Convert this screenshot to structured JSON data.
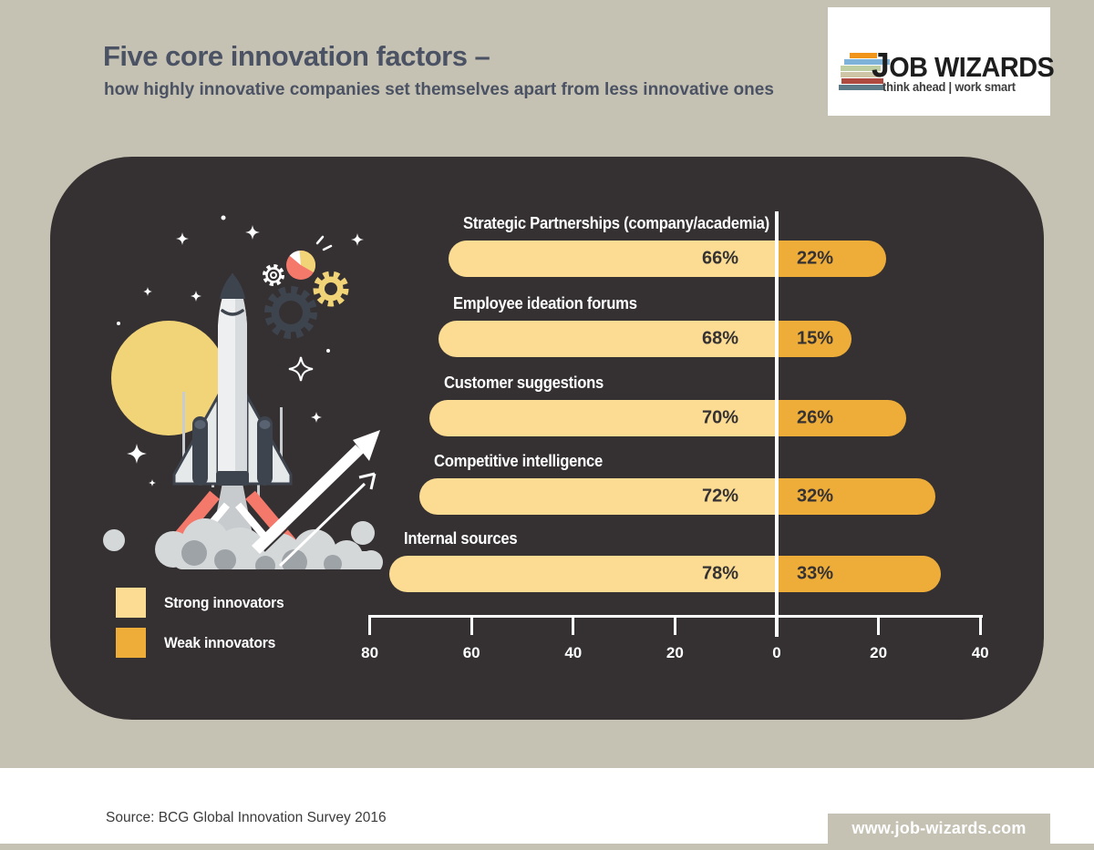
{
  "header": {
    "title": "Five core innovation factors –",
    "subtitle": "how highly innovative companies set themselves apart from less innovative ones"
  },
  "logo": {
    "name": "JOB WIZARDS",
    "tagline": "think ahead | work smart",
    "stripe_colors": [
      "#F0941A",
      "#7EB2D9",
      "#BECDA2",
      "#CDC5A5",
      "#AF4A41",
      "#5C7A87"
    ]
  },
  "chart_data": {
    "type": "bar",
    "orientation": "horizontal-diverging",
    "title": "Five core innovation factors",
    "categories": [
      "Strategic Partnerships (company/academia)",
      "Employee ideation forums",
      "Customer suggestions",
      "Competitive intelligence",
      "Internal sources"
    ],
    "series": [
      {
        "name": "Strong innovators",
        "color": "#FBDC92",
        "values": [
          66,
          68,
          70,
          72,
          78
        ]
      },
      {
        "name": "Weak innovators",
        "color": "#EDAD38",
        "values": [
          22,
          15,
          26,
          32,
          33
        ]
      }
    ],
    "value_suffix": "%",
    "axis": {
      "ticks": [
        -80,
        -60,
        -40,
        -20,
        0,
        20,
        40
      ],
      "tick_labels": [
        "80",
        "60",
        "40",
        "20",
        "0",
        "20",
        "40"
      ]
    },
    "grid": false,
    "legend_position": "bottom-left"
  },
  "legend": [
    {
      "label": "Strong innovators",
      "color": "#FBDC92"
    },
    {
      "label": "Weak innovators",
      "color": "#EDAD38"
    }
  ],
  "footer": {
    "source": "Source: BCG Global Innovation Survey 2016",
    "website": "www.job-wizards.com"
  },
  "colors": {
    "background": "#C6C2B3",
    "panel": "#353132",
    "title_text": "#4A5263",
    "bar_strong": "#FBDC92",
    "bar_weak": "#EDAD38",
    "accent_salmon": "#F5796B",
    "accent_yellow": "#F2D478"
  }
}
